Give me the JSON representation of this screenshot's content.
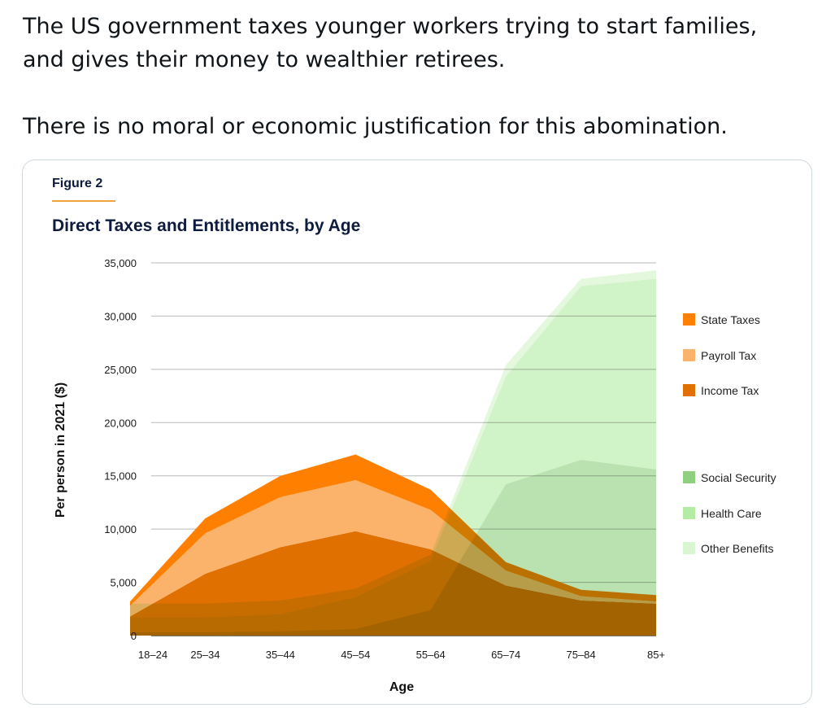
{
  "post": {
    "line1": "The US government taxes younger workers trying to start families, and gives their money to wealthier retirees.",
    "line2": "There is no moral or economic justification for this abomination."
  },
  "figure": {
    "label": "Figure 2"
  },
  "chart_data": {
    "type": "area",
    "title": "Direct Taxes and Entitlements, by Age",
    "xlabel": "Age",
    "ylabel": "Per person in 2021 ($)",
    "categories": [
      "18–24",
      "25–34",
      "35–44",
      "45–54",
      "55–64",
      "65–74",
      "75–84",
      "85+"
    ],
    "ylim": [
      0,
      35000
    ],
    "yticks": [
      0,
      5000,
      10000,
      15000,
      20000,
      25000,
      30000,
      35000
    ],
    "ytick_labels": [
      "0",
      "5,000",
      "10,000",
      "15,000",
      "20,000",
      "25,000",
      "30,000",
      "35,000"
    ],
    "grid": true,
    "legend_position": "right",
    "taxes": {
      "stacked": true,
      "series": [
        {
          "name": "Income Tax",
          "color": "#e07000",
          "values": [
            1800,
            5800,
            8300,
            9800,
            8100,
            4700,
            3300,
            3000
          ]
        },
        {
          "name": "Payroll Tax",
          "color": "#fbb26a",
          "values": [
            1000,
            3800,
            4700,
            4800,
            3700,
            1400,
            400,
            200
          ]
        },
        {
          "name": "State Taxes",
          "color": "#ff8000",
          "values": [
            400,
            1400,
            2000,
            2400,
            1900,
            800,
            600,
            600
          ]
        }
      ]
    },
    "benefits": {
      "stacked": true,
      "series": [
        {
          "name": "Social Security",
          "color": "#8fcf80",
          "values": [
            300,
            300,
            400,
            600,
            2400,
            14200,
            16500,
            15600
          ]
        },
        {
          "name": "Health Care",
          "color": "#b4eca6",
          "values": [
            1400,
            1400,
            1600,
            3000,
            4600,
            10100,
            16300,
            17900
          ]
        },
        {
          "name": "Other Benefits",
          "color": "#daf5d2",
          "values": [
            1300,
            1300,
            1300,
            800,
            600,
            1100,
            700,
            800
          ]
        }
      ]
    },
    "legend": [
      {
        "name": "State Taxes",
        "color": "#ff8000"
      },
      {
        "name": "Payroll Tax",
        "color": "#fbb26a"
      },
      {
        "name": "Income Tax",
        "color": "#e07000"
      },
      {
        "name": "Social Security",
        "color": "#8fcf80"
      },
      {
        "name": "Health Care",
        "color": "#b4eca6"
      },
      {
        "name": "Other Benefits",
        "color": "#daf5d2"
      }
    ]
  }
}
